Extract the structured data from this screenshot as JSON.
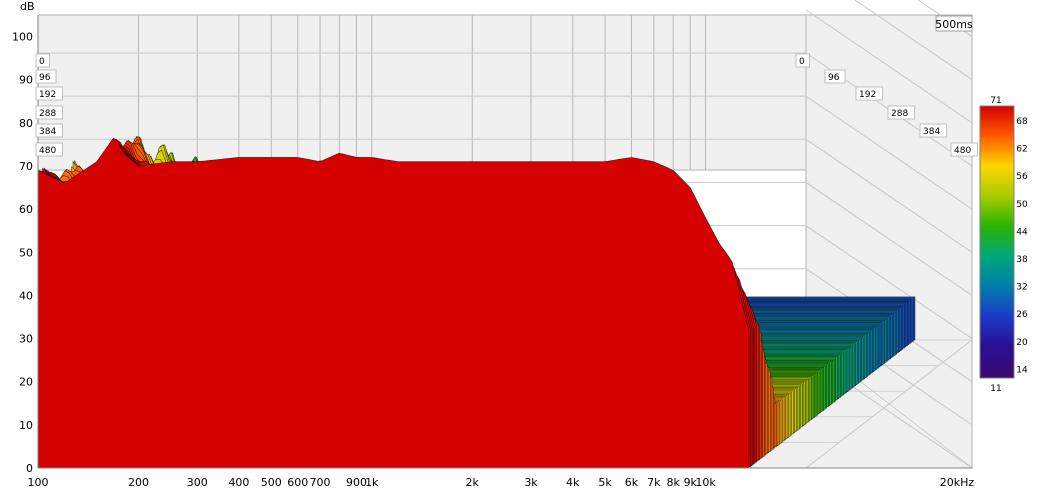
{
  "chart_data": {
    "type": "area",
    "subtype": "waterfall-3d",
    "ylabel": "dB",
    "y_ticks": [
      0,
      10,
      20,
      30,
      40,
      50,
      60,
      70,
      80,
      90,
      100
    ],
    "ylim": [
      0,
      105
    ],
    "x_scale": "log",
    "xlim": [
      100,
      20000
    ],
    "x_ticks": [
      {
        "value": 100,
        "label": "100"
      },
      {
        "value": 200,
        "label": "200"
      },
      {
        "value": 300,
        "label": "300"
      },
      {
        "value": 400,
        "label": "400"
      },
      {
        "value": 500,
        "label": "500"
      },
      {
        "value": 600,
        "label": "600"
      },
      {
        "value": 700,
        "label": "700"
      },
      {
        "value": 900,
        "label": "900"
      },
      {
        "value": 1000,
        "label": "1k"
      },
      {
        "value": 2000,
        "label": "2k"
      },
      {
        "value": 3000,
        "label": "3k"
      },
      {
        "value": 4000,
        "label": "4k"
      },
      {
        "value": 5000,
        "label": "5k"
      },
      {
        "value": 6000,
        "label": "6k"
      },
      {
        "value": 7000,
        "label": "7k"
      },
      {
        "value": 8000,
        "label": "8k"
      },
      {
        "value": 9000,
        "label": "9k"
      },
      {
        "value": 10000,
        "label": "10k"
      },
      {
        "value": 20000,
        "label": "20kHz"
      }
    ],
    "x_grid": [
      100,
      200,
      300,
      400,
      500,
      600,
      700,
      800,
      900,
      1000,
      2000,
      3000,
      4000,
      5000,
      6000,
      7000,
      8000,
      9000,
      10000,
      20000
    ],
    "time_ticks": [
      "0",
      "96",
      "192",
      "288",
      "384",
      "480"
    ],
    "time_unit_label": "500ms",
    "z_range_ms": [
      0,
      500
    ],
    "slices": 110,
    "front_slice_at_0ms": {
      "freq_hz": [
        100,
        120,
        150,
        170,
        180,
        200,
        250,
        300,
        400,
        500,
        600,
        700,
        800,
        900,
        1000,
        1200,
        1500,
        2000,
        3000,
        4000,
        5000,
        6000,
        7000,
        8000,
        9000,
        10000,
        11000,
        12000
      ],
      "level_db": [
        69,
        66,
        71,
        77,
        73,
        70,
        71,
        71,
        72,
        72,
        72,
        71,
        73,
        72,
        72,
        71,
        71,
        71,
        71,
        71,
        71,
        72,
        71,
        69,
        65,
        58,
        52,
        48
      ]
    },
    "colorbar": {
      "top_label": "71",
      "bottom_label": "11",
      "ticks": [
        "68",
        "62",
        "56",
        "50",
        "44",
        "38",
        "32",
        "26",
        "20",
        "14"
      ],
      "colors": [
        "#d50000",
        "#ff5a00",
        "#ffd400",
        "#aacc00",
        "#2db300",
        "#00a878",
        "#0080aa",
        "#1a3cc8",
        "#2a0f96",
        "#3a0a6e"
      ]
    },
    "grid": true
  }
}
